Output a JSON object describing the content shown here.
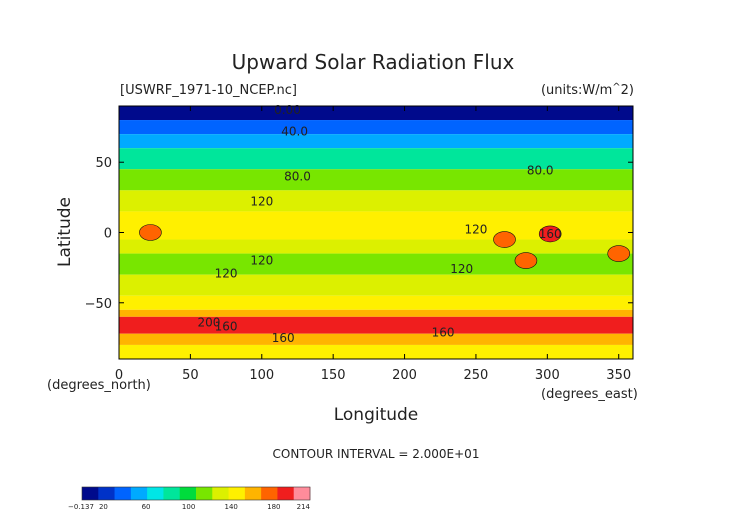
{
  "chart_data": {
    "type": "heatmap",
    "title": "Upward Solar Radiation Flux",
    "source_label": "[USWRF_1971-10_NCEP.nc]",
    "units_label": "(units:W/m^2)",
    "xlabel": "Longitude",
    "ylabel": "Latitude",
    "x_unit_label": "(degrees_east)",
    "y_unit_label": "(degrees_north)",
    "xlim": [
      0,
      360
    ],
    "ylim": [
      -90,
      90
    ],
    "xticks": [
      0,
      50,
      100,
      150,
      200,
      250,
      300,
      350
    ],
    "yticks": [
      50,
      0,
      -50
    ],
    "ytick_labels": [
      "50",
      "0",
      "−50"
    ],
    "contour_interval_text": "CONTOUR INTERVAL = 2.000E+01",
    "contour_labels": [
      {
        "text": "0.00",
        "lon": 118,
        "lat": 87
      },
      {
        "text": "40.0",
        "lon": 123,
        "lat": 72
      },
      {
        "text": "80.0",
        "lon": 125,
        "lat": 40
      },
      {
        "text": "80.0",
        "lon": 295,
        "lat": 44
      },
      {
        "text": "120",
        "lon": 100,
        "lat": 22
      },
      {
        "text": "120",
        "lon": 250,
        "lat": 2
      },
      {
        "text": "160",
        "lon": 302,
        "lat": -1
      },
      {
        "text": "120",
        "lon": 75,
        "lat": -29
      },
      {
        "text": "120",
        "lon": 100,
        "lat": -20
      },
      {
        "text": "120",
        "lon": 240,
        "lat": -26
      },
      {
        "text": "200",
        "lon": 63,
        "lat": -64
      },
      {
        "text": "160",
        "lon": 75,
        "lat": -67
      },
      {
        "text": "160",
        "lon": 115,
        "lat": -75
      },
      {
        "text": "160",
        "lon": 227,
        "lat": -71
      }
    ],
    "zonal_mean_bands": [
      {
        "lat_max": 90,
        "lat_min": 80,
        "value": 10
      },
      {
        "lat_max": 80,
        "lat_min": 70,
        "value": 40
      },
      {
        "lat_max": 70,
        "lat_min": 60,
        "value": 60
      },
      {
        "lat_max": 60,
        "lat_min": 45,
        "value": 85
      },
      {
        "lat_max": 45,
        "lat_min": 30,
        "value": 110
      },
      {
        "lat_max": 30,
        "lat_min": 15,
        "value": 125
      },
      {
        "lat_max": 15,
        "lat_min": -5,
        "value": 140
      },
      {
        "lat_max": -5,
        "lat_min": -15,
        "value": 125
      },
      {
        "lat_max": -15,
        "lat_min": -30,
        "value": 115
      },
      {
        "lat_max": -30,
        "lat_min": -45,
        "value": 130
      },
      {
        "lat_max": -45,
        "lat_min": -55,
        "value": 140
      },
      {
        "lat_max": -55,
        "lat_min": -60,
        "value": 160
      },
      {
        "lat_max": -60,
        "lat_min": -72,
        "value": 185
      },
      {
        "lat_max": -72,
        "lat_min": -80,
        "value": 165
      },
      {
        "lat_max": -80,
        "lat_min": -90,
        "value": 150
      }
    ],
    "hot_spots": [
      {
        "lon": 22,
        "lat": 0,
        "value": 175
      },
      {
        "lon": 285,
        "lat": -20,
        "value": 180
      },
      {
        "lon": 302,
        "lat": -1,
        "value": 185
      },
      {
        "lon": 350,
        "lat": -15,
        "value": 180
      },
      {
        "lon": 270,
        "lat": -5,
        "value": 170
      }
    ],
    "colorbar": {
      "min": -0.137,
      "max": 214,
      "tick_labels": [
        "−0.137",
        "20",
        "60",
        "100",
        "140",
        "180",
        "214"
      ],
      "tick_values": [
        -0.137,
        20,
        60,
        100,
        140,
        180,
        214
      ],
      "colors": [
        "#000a8c",
        "#0032c8",
        "#0064ff",
        "#00aaff",
        "#00e6e6",
        "#00e69b",
        "#00dc3c",
        "#78e600",
        "#dcf000",
        "#fff000",
        "#ffb400",
        "#ff6400",
        "#f01e1e",
        "#ff8c9b"
      ]
    }
  }
}
